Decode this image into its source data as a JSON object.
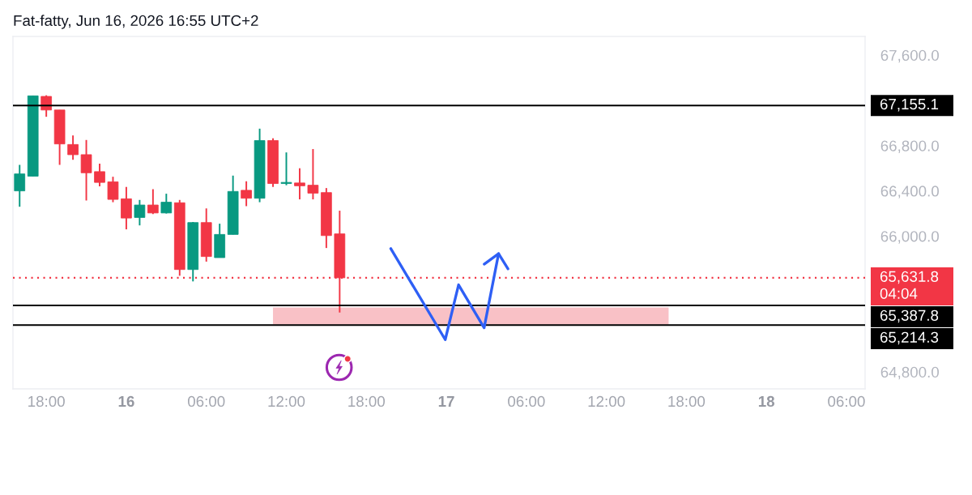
{
  "chart_data": {
    "type": "candlestick",
    "title": "Fat-fatty, Jun 16, 2026 16:55 UTC+2",
    "x": [
      "2026-06-15T16:00",
      "2026-06-15T17:00",
      "2026-06-15T18:00",
      "2026-06-15T19:00",
      "2026-06-15T20:00",
      "2026-06-15T21:00",
      "2026-06-15T22:00",
      "2026-06-15T23:00",
      "2026-06-16T00:00",
      "2026-06-16T01:00",
      "2026-06-16T02:00",
      "2026-06-16T03:00",
      "2026-06-16T04:00",
      "2026-06-16T05:00",
      "2026-06-16T06:00",
      "2026-06-16T07:00",
      "2026-06-16T08:00",
      "2026-06-16T09:00",
      "2026-06-16T10:00",
      "2026-06-16T11:00",
      "2026-06-16T12:00",
      "2026-06-16T13:00",
      "2026-06-16T14:00",
      "2026-06-16T15:00",
      "2026-06-16T16:00"
    ],
    "ohlc": [
      [
        66400,
        66630,
        66260,
        66550
      ],
      [
        66530,
        67240,
        66530,
        67240
      ],
      [
        67235,
        67245,
        67055,
        67115
      ],
      [
        67115,
        67115,
        66630,
        66815
      ],
      [
        66810,
        66890,
        66675,
        66720
      ],
      [
        66720,
        66850,
        66315,
        66560
      ],
      [
        66570,
        66640,
        66440,
        66475
      ],
      [
        66480,
        66525,
        66300,
        66325
      ],
      [
        66330,
        66435,
        66060,
        66160
      ],
      [
        66165,
        66320,
        66095,
        66275
      ],
      [
        66275,
        66415,
        66195,
        66205
      ],
      [
        66205,
        66375,
        66200,
        66300
      ],
      [
        66295,
        66320,
        65650,
        65705
      ],
      [
        65705,
        66125,
        65600,
        66120
      ],
      [
        66120,
        66245,
        65775,
        65820
      ],
      [
        65810,
        66110,
        65810,
        66015
      ],
      [
        66015,
        66535,
        66015,
        66395
      ],
      [
        66405,
        66485,
        66265,
        66335
      ],
      [
        66335,
        66950,
        66300,
        66845
      ],
      [
        66845,
        66865,
        66435,
        66465
      ],
      [
        66465,
        66740,
        66450,
        66475
      ],
      [
        66470,
        66600,
        66325,
        66445
      ],
      [
        66450,
        66770,
        66325,
        66380
      ],
      [
        66385,
        66425,
        65895,
        66005
      ],
      [
        66020,
        66225,
        65325,
        65631.8
      ]
    ],
    "colors": [
      "#089981",
      "#089981",
      "#f23645",
      "#f23645",
      "#f23645",
      "#f23645",
      "#f23645",
      "#f23645",
      "#f23645",
      "#089981",
      "#f23645",
      "#089981",
      "#f23645",
      "#089981",
      "#f23645",
      "#089981",
      "#089981",
      "#f23645",
      "#089981",
      "#f23645",
      "#089981",
      "#f23645",
      "#f23645",
      "#f23645",
      "#f23645"
    ],
    "series": [
      {
        "type": "line",
        "x": [
          "2026-06-16T11:00",
          "2026-06-17T16:40"
        ],
        "values": [
          null,
          null
        ],
        "lower": [
          65220,
          65220
        ],
        "upper": [
          65370,
          65370
        ],
        "color": "#f9c1c6"
      },
      {
        "type": "line",
        "x": [
          "2026-06-16T19:50",
          "2026-06-16T23:55",
          "2026-06-17T00:55",
          "2026-06-17T02:50",
          "2026-06-17T03:55"
        ],
        "values": [
          65890,
          65085,
          65570,
          65190,
          65845
        ],
        "color": "#2e5ff5"
      }
    ],
    "ref_lines": [
      {
        "axis": "y",
        "value": 67155.1,
        "label": "67,155.1",
        "color": "#000000"
      },
      {
        "axis": "y",
        "value": 65631.8,
        "label": "65,631.8\n04:04",
        "color": "#f23645",
        "line_style": "dotted"
      },
      {
        "axis": "y",
        "value": 65387.8,
        "label": "65,387.8",
        "color": "#000000"
      },
      {
        "axis": "y",
        "value": 65214.3,
        "label": "65,214.3",
        "color": "#000000"
      }
    ],
    "xlim": [
      "2026-06-15T15:30",
      "2026-06-18T07:24"
    ],
    "xticks": [
      {
        "value": "2026-06-15T18:00",
        "label": "18:00"
      },
      {
        "value": "2026-06-16T00:00",
        "label": "16"
      },
      {
        "value": "2026-06-16T06:00",
        "label": "06:00"
      },
      {
        "value": "2026-06-16T12:00",
        "label": "12:00"
      },
      {
        "value": "2026-06-16T18:00",
        "label": "18:00"
      },
      {
        "value": "2026-06-17T00:00",
        "label": "17"
      },
      {
        "value": "2026-06-17T06:00",
        "label": "06:00"
      },
      {
        "value": "2026-06-17T12:00",
        "label": "12:00"
      },
      {
        "value": "2026-06-17T18:00",
        "label": "18:00"
      },
      {
        "value": "2026-06-18T00:00",
        "label": "18"
      },
      {
        "value": "2026-06-18T06:00",
        "label": "06:00"
      }
    ],
    "ylim": [
      64650,
      67765
    ],
    "yticks": [
      {
        "value": 67600,
        "label": "67,600.0"
      },
      {
        "value": 66800,
        "label": "66,800.0"
      },
      {
        "value": 66400,
        "label": "66,400.0"
      },
      {
        "value": 66000,
        "label": "66,000.0"
      },
      {
        "value": 64800,
        "label": "64,800.0"
      }
    ]
  }
}
